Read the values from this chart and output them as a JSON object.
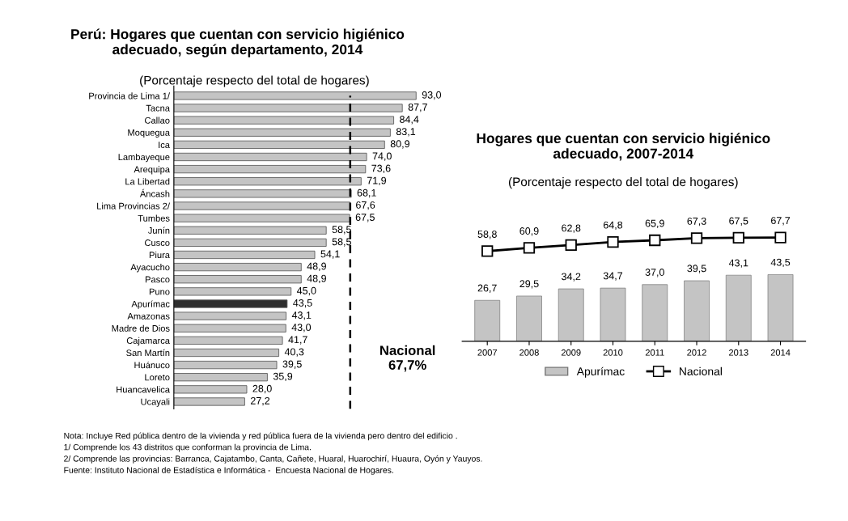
{
  "chart_data": [
    {
      "type": "bar",
      "orientation": "horizontal",
      "title": "Perú: Hogares que cuentan con servicio higiénico\nadecuado, según departamento, 2014",
      "subtitle": "(Porcentaje respecto del total de hogares)",
      "categories": [
        "Provincia de Lima 1/",
        "Tacna",
        "Callao",
        "Moquegua",
        "Ica",
        "Lambayeque",
        "Arequipa",
        "La Libertad",
        "Áncash",
        "Lima Provincias 2/",
        "Tumbes",
        "Junín",
        "Cusco",
        "Piura",
        "Ayacucho",
        "Pasco",
        "Puno",
        "Apurímac",
        "Amazonas",
        "Madre de Dios",
        "Cajamarca",
        "San Martín",
        "Huánuco",
        "Loreto",
        "Huancavelica",
        "Ucayali"
      ],
      "values": [
        93.0,
        87.7,
        84.4,
        83.1,
        80.9,
        74.0,
        73.6,
        71.9,
        68.1,
        67.6,
        67.5,
        58.5,
        58.5,
        54.1,
        48.9,
        48.9,
        45.0,
        43.5,
        43.1,
        43.0,
        41.7,
        40.3,
        39.5,
        35.9,
        28.0,
        27.2
      ],
      "value_labels": [
        "93,0",
        "87,7",
        "84,4",
        "83,1",
        "80,9",
        "74,0",
        "73,6",
        "71,9",
        "68,1",
        "67,6",
        "67,5",
        "58,5",
        "58,5",
        "54,1",
        "48,9",
        "48,9",
        "45,0",
        "43,5",
        "43,1",
        "43,0",
        "41,7",
        "40,3",
        "39,5",
        "35,9",
        "28,0",
        "27,2"
      ],
      "colors": [
        "#c4c4c4",
        "#c4c4c4",
        "#c4c4c4",
        "#c4c4c4",
        "#c4c4c4",
        "#c4c4c4",
        "#c4c4c4",
        "#c4c4c4",
        "#c4c4c4",
        "#c4c4c4",
        "#c4c4c4",
        "#c4c4c4",
        "#c4c4c4",
        "#c4c4c4",
        "#c4c4c4",
        "#c4c4c4",
        "#c4c4c4",
        "#2e2e2e",
        "#c4c4c4",
        "#c4c4c4",
        "#c4c4c4",
        "#c4c4c4",
        "#c4c4c4",
        "#c4c4c4",
        "#c4c4c4",
        "#c4c4c4"
      ],
      "ref_lines": [
        {
          "axis": "x",
          "value": 67.7,
          "label": "Nacional\n67,7%",
          "color": "#000000",
          "line_style": "dashed"
        }
      ],
      "annotations": [
        "Nota: Incluye Red pública dentro de la vivienda y red pública fuera de la vivienda pero dentro del edificio .",
        "1/ Comprende los 43 distritos que conforman la provincia de Lima.",
        "2/ Comprende las provincias: Barranca, Cajatambo, Canta, Cañete, Huaral, Huarochirí, Huaura, Oyón y Yauyos.",
        "Fuente: Instituto Nacional de Estadística e Informática -  Encuesta Nacional de Hogares."
      ]
    },
    {
      "type": "bar",
      "title": "Hogares que cuentan con servicio higiénico\nadecuado, 2007-2014",
      "subtitle": "(Porcentaje respecto del total de hogares)",
      "categories": [
        "2007",
        "2008",
        "2009",
        "2010",
        "2011",
        "2012",
        "2013",
        "2014"
      ],
      "legend": "bottom",
      "tick_labels": "x",
      "series": [
        {
          "name": "Apurímac",
          "type": "bar",
          "color": "#c4c4c4",
          "values": [
            26.7,
            29.5,
            34.2,
            34.7,
            37.0,
            39.5,
            43.1,
            43.5
          ],
          "value_labels": [
            "26,7",
            "29,5",
            "34,2",
            "34,7",
            "37,0",
            "39,5",
            "43,1",
            "43,5"
          ]
        },
        {
          "name": "Nacional",
          "type": "line",
          "color": "#000000",
          "marker": "square",
          "values": [
            58.8,
            60.9,
            62.8,
            64.8,
            65.9,
            67.3,
            67.5,
            67.7
          ],
          "value_labels": [
            "58,8",
            "60,9",
            "62,8",
            "64,8",
            "65,9",
            "67,3",
            "67,5",
            "67,7"
          ]
        }
      ]
    }
  ]
}
